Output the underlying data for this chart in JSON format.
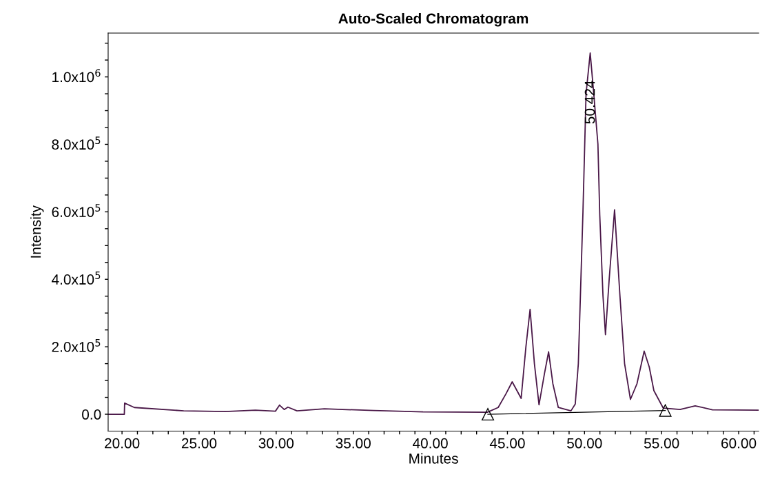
{
  "chart_data": {
    "type": "line",
    "title": "Auto-Scaled Chromatogram",
    "xlabel": "Minutes",
    "ylabel": "Intensity",
    "series": [
      {
        "color": "#4a1848",
        "marker": "none",
        "x": [
          19.1,
          20.15,
          20.17,
          20.8,
          24.0,
          26.7,
          28.65,
          29.95,
          30.22,
          30.52,
          30.76,
          31.35,
          33.13,
          36.34,
          39.53,
          43.7,
          44.4,
          44.9,
          45.31,
          45.89,
          46.2,
          46.47,
          46.75,
          47.05,
          47.4,
          47.67,
          47.95,
          48.3,
          49.12,
          49.4,
          49.6,
          49.9,
          50.1,
          50.37,
          50.6,
          50.87,
          50.99,
          51.2,
          51.36,
          51.6,
          51.95,
          52.3,
          52.6,
          52.98,
          53.4,
          53.87,
          54.2,
          54.5,
          55.11,
          56.2,
          57.18,
          58.3,
          61.3
        ],
        "values": [
          0,
          0,
          33000,
          20000,
          10000,
          8000,
          12000,
          9000,
          27000,
          14000,
          21000,
          10000,
          16000,
          11000,
          7000,
          6000,
          20000,
          60000,
          96000,
          47000,
          200000,
          311000,
          150000,
          28000,
          120000,
          185000,
          90000,
          20000,
          10000,
          30000,
          150000,
          600000,
          950000,
          1071000,
          950000,
          801000,
          590000,
          350000,
          236000,
          400000,
          606000,
          350000,
          150000,
          44000,
          90000,
          187000,
          140000,
          70000,
          18000,
          14000,
          25000,
          13000,
          12000
        ]
      },
      {
        "color": "#000000",
        "marker": "triangle",
        "x": [
          43.73,
          55.24
        ],
        "values": [
          0,
          11000
        ]
      }
    ],
    "annotations": [
      {
        "text": "50.424",
        "x": 50.424,
        "y": 990000
      }
    ],
    "xlim": [
      19.1,
      61.3
    ],
    "xticks": [
      {
        "value": 20,
        "label": "20.00"
      },
      {
        "value": 21,
        "label": null
      },
      {
        "value": 22,
        "label": null
      },
      {
        "value": 23,
        "label": null
      },
      {
        "value": 24,
        "label": null
      },
      {
        "value": 25,
        "label": "25.00"
      },
      {
        "value": 26,
        "label": null
      },
      {
        "value": 27,
        "label": null
      },
      {
        "value": 28,
        "label": null
      },
      {
        "value": 29,
        "label": null
      },
      {
        "value": 30,
        "label": "30.00"
      },
      {
        "value": 31,
        "label": null
      },
      {
        "value": 32,
        "label": null
      },
      {
        "value": 33,
        "label": null
      },
      {
        "value": 34,
        "label": null
      },
      {
        "value": 35,
        "label": "35.00"
      },
      {
        "value": 36,
        "label": null
      },
      {
        "value": 37,
        "label": null
      },
      {
        "value": 38,
        "label": null
      },
      {
        "value": 39,
        "label": null
      },
      {
        "value": 40,
        "label": "40.00"
      },
      {
        "value": 41,
        "label": null
      },
      {
        "value": 42,
        "label": null
      },
      {
        "value": 43,
        "label": null
      },
      {
        "value": 44,
        "label": null
      },
      {
        "value": 45,
        "label": "45.00"
      },
      {
        "value": 46,
        "label": null
      },
      {
        "value": 47,
        "label": null
      },
      {
        "value": 48,
        "label": null
      },
      {
        "value": 49,
        "label": null
      },
      {
        "value": 50,
        "label": "50.00"
      },
      {
        "value": 51,
        "label": null
      },
      {
        "value": 52,
        "label": null
      },
      {
        "value": 53,
        "label": null
      },
      {
        "value": 54,
        "label": null
      },
      {
        "value": 55,
        "label": "55.00"
      },
      {
        "value": 56,
        "label": null
      },
      {
        "value": 57,
        "label": null
      },
      {
        "value": 58,
        "label": null
      },
      {
        "value": 59,
        "label": null
      },
      {
        "value": 60,
        "label": "60.00"
      },
      {
        "value": 61,
        "label": null
      }
    ],
    "ylim": [
      -50000,
      1130000
    ],
    "yticks": [
      {
        "value": 0,
        "label": "0.0"
      },
      {
        "value": 50000,
        "label": null
      },
      {
        "value": 100000,
        "label": null
      },
      {
        "value": 150000,
        "label": null
      },
      {
        "value": 200000,
        "label": "2.0x10$^{5}$"
      },
      {
        "value": 250000,
        "label": null
      },
      {
        "value": 300000,
        "label": null
      },
      {
        "value": 350000,
        "label": null
      },
      {
        "value": 400000,
        "label": "4.0x10$^{5}$"
      },
      {
        "value": 450000,
        "label": null
      },
      {
        "value": 500000,
        "label": null
      },
      {
        "value": 550000,
        "label": null
      },
      {
        "value": 600000,
        "label": "6.0x10$^{5}$"
      },
      {
        "value": 650000,
        "label": null
      },
      {
        "value": 700000,
        "label": null
      },
      {
        "value": 750000,
        "label": null
      },
      {
        "value": 800000,
        "label": "8.0x10$^{5}$"
      },
      {
        "value": 850000,
        "label": null
      },
      {
        "value": 900000,
        "label": null
      },
      {
        "value": 950000,
        "label": null
      },
      {
        "value": 1000000,
        "label": "1.0x10$^{6}$"
      },
      {
        "value": 1050000,
        "label": null
      },
      {
        "value": 1100000,
        "label": null
      }
    ],
    "grid": false,
    "legend": false
  }
}
